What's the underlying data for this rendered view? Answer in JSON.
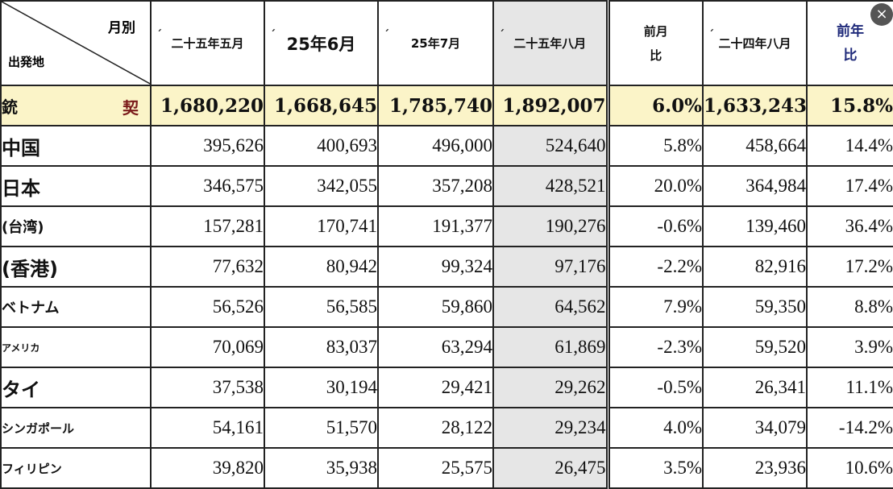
{
  "header": {
    "corner_month": "月別",
    "corner_origin": "出発地",
    "tick": "ˊ",
    "columns": [
      {
        "label": "二十五年五月",
        "style": "normal"
      },
      {
        "label": "25年6月",
        "style": "big"
      },
      {
        "label": "25年7月",
        "style": "normal"
      },
      {
        "label": "二十五年八月",
        "style": "normal"
      },
      {
        "label": "前月\n比",
        "style": "two"
      },
      {
        "label": "二十四年八月",
        "style": "normal"
      },
      {
        "label": "前年\n比",
        "style": "navy"
      }
    ]
  },
  "total": {
    "label_left": "銃",
    "label_right": "契",
    "values": [
      "1,680,220",
      "1,668,645",
      "1,785,740",
      "1,892,007",
      "6.0%",
      "1,633,243",
      "15.8%"
    ]
  },
  "rows": [
    {
      "label": "中国",
      "size": "l1",
      "values": [
        "395,626",
        "400,693",
        "496,000",
        "524,640",
        "5.8%",
        "458,664",
        "14.4%"
      ]
    },
    {
      "label": "日本",
      "size": "l1",
      "values": [
        "346,575",
        "342,055",
        "357,208",
        "428,521",
        "20.0%",
        "364,984",
        "17.4%"
      ]
    },
    {
      "label": "(台湾)",
      "size": "l2",
      "values": [
        "157,281",
        "170,741",
        "191,377",
        "190,276",
        "-0.6%",
        "139,460",
        "36.4%"
      ]
    },
    {
      "label": "(香港)",
      "size": "l1",
      "values": [
        "77,632",
        "80,942",
        "99,324",
        "97,176",
        "-2.2%",
        "82,916",
        "17.2%"
      ]
    },
    {
      "label": "ベトナム",
      "size": "l2",
      "values": [
        "56,526",
        "56,585",
        "59,860",
        "64,562",
        "7.9%",
        "59,350",
        "8.8%"
      ]
    },
    {
      "label": "アメリカ",
      "size": "l3",
      "values": [
        "70,069",
        "83,037",
        "63,294",
        "61,869",
        "-2.3%",
        "59,520",
        "3.9%"
      ]
    },
    {
      "label": "タイ",
      "size": "l1",
      "values": [
        "37,538",
        "30,194",
        "29,421",
        "29,262",
        "-0.5%",
        "26,341",
        "11.1%"
      ]
    },
    {
      "label": "シンガポール",
      "size": "l4",
      "values": [
        "54,161",
        "51,570",
        "28,122",
        "29,234",
        "4.0%",
        "34,079",
        "-14.2%"
      ]
    },
    {
      "label": "フィリピン",
      "size": "l4",
      "values": [
        "39,820",
        "35,938",
        "25,575",
        "26,475",
        "3.5%",
        "23,936",
        "10.6%"
      ]
    }
  ],
  "close_icon": "×",
  "colors": {
    "highlight_row": "#fbf4c8",
    "shaded_column": "#e6e6e6",
    "navy_header": "#1f2a7a"
  }
}
